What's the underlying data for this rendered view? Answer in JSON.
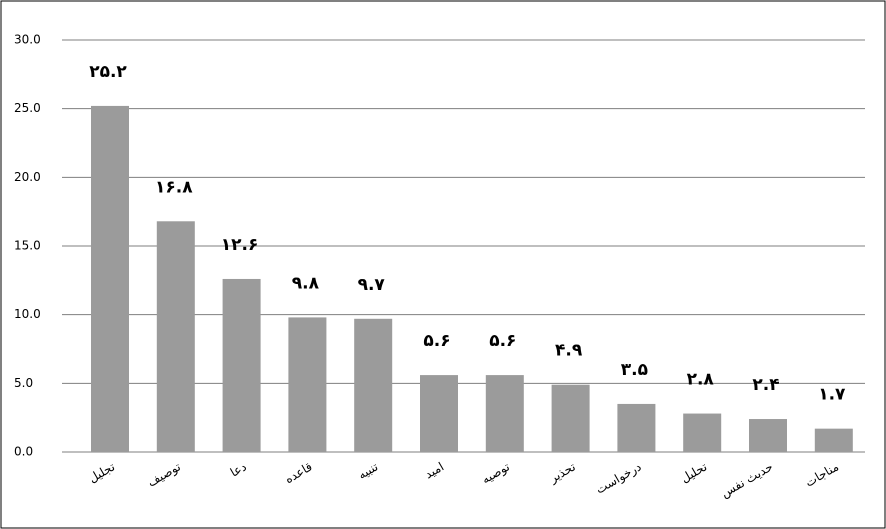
{
  "chart_data": {
    "type": "bar",
    "categories": [
      "تجلیل",
      "توصیف",
      "دعا",
      "قاعده",
      "تنبیه",
      "امید",
      "توصیه",
      "تحذیر",
      "درخواست",
      "تحلیل",
      "حدیث نفس",
      "مناجات"
    ],
    "values": [
      25.2,
      16.8,
      12.6,
      9.8,
      9.7,
      5.6,
      5.6,
      4.9,
      3.5,
      2.8,
      2.4,
      1.7
    ],
    "value_labels": [
      "۲۵.۲",
      "۱۶.۸",
      "۱۲.۶",
      "۹.۸",
      "۹.۷",
      "۵.۶",
      "۵.۶",
      "۴.۹",
      "۳.۵",
      "۲.۸",
      "۲.۴",
      "۱.۷"
    ],
    "color": "#9b9b9b",
    "ylim": [
      0,
      30
    ],
    "yticks": [
      {
        "value": 0,
        "label": "0.0"
      },
      {
        "value": 5,
        "label": "5.0"
      },
      {
        "value": 10,
        "label": "10.0"
      },
      {
        "value": 15,
        "label": "15.0"
      },
      {
        "value": 20,
        "label": "20.0"
      },
      {
        "value": 25,
        "label": "25.0"
      },
      {
        "value": 30,
        "label": "30.0"
      }
    ],
    "grid": true
  }
}
